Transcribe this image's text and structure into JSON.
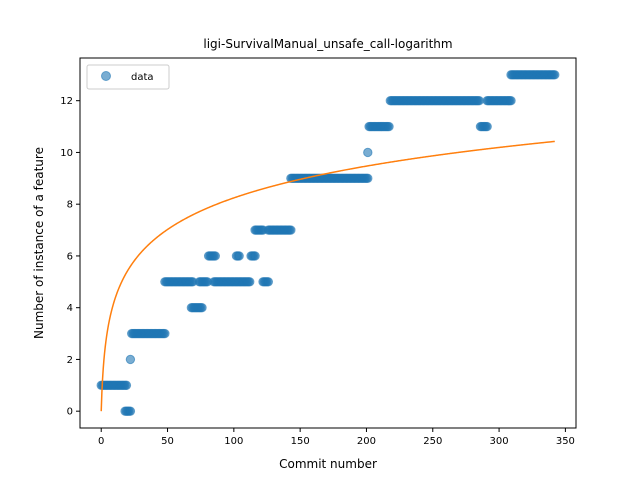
{
  "chart_data": {
    "type": "scatter",
    "title": "ligi-SurvivalManual_unsafe_call-logarithm",
    "xlabel": "Commit number",
    "ylabel": "Number of instance of a feature",
    "xlim": [
      -16,
      358
    ],
    "ylim": [
      -0.65,
      13.65
    ],
    "xticks": [
      0,
      50,
      100,
      150,
      200,
      250,
      300,
      350
    ],
    "yticks": [
      0,
      2,
      4,
      6,
      8,
      10,
      12
    ],
    "legend": {
      "position": "top-left",
      "entries": [
        "data"
      ]
    },
    "grid": false,
    "colors": {
      "points": "#1f77b4",
      "fit": "#ff7f0e"
    },
    "series": [
      {
        "name": "data",
        "kind": "scatter",
        "segments": [
          {
            "x_start": 0,
            "x_end": 19,
            "y": 1
          },
          {
            "x_start": 18,
            "x_end": 22,
            "y": 0
          },
          {
            "x_start": 22,
            "x_end": 22,
            "y": 2
          },
          {
            "x_start": 23,
            "x_end": 48,
            "y": 3
          },
          {
            "x_start": 48,
            "x_end": 69,
            "y": 5
          },
          {
            "x_start": 68,
            "x_end": 76,
            "y": 4
          },
          {
            "x_start": 74,
            "x_end": 80,
            "y": 5
          },
          {
            "x_start": 81,
            "x_end": 86,
            "y": 6
          },
          {
            "x_start": 85,
            "x_end": 99,
            "y": 5
          },
          {
            "x_start": 102,
            "x_end": 104,
            "y": 6
          },
          {
            "x_start": 100,
            "x_end": 112,
            "y": 5
          },
          {
            "x_start": 113,
            "x_end": 116,
            "y": 6
          },
          {
            "x_start": 116,
            "x_end": 122,
            "y": 7
          },
          {
            "x_start": 122,
            "x_end": 126,
            "y": 5
          },
          {
            "x_start": 126,
            "x_end": 143,
            "y": 7
          },
          {
            "x_start": 143,
            "x_end": 201,
            "y": 9
          },
          {
            "x_start": 201,
            "x_end": 201,
            "y": 10
          },
          {
            "x_start": 202,
            "x_end": 217,
            "y": 11
          },
          {
            "x_start": 218,
            "x_end": 285,
            "y": 12
          },
          {
            "x_start": 286,
            "x_end": 291,
            "y": 11
          },
          {
            "x_start": 291,
            "x_end": 309,
            "y": 12
          },
          {
            "x_start": 309,
            "x_end": 342,
            "y": 13
          }
        ]
      },
      {
        "name": "",
        "kind": "line",
        "function": "a + b*ln(x+1)",
        "a": 0,
        "b": 1.786,
        "x_range": [
          0,
          342
        ]
      }
    ]
  }
}
